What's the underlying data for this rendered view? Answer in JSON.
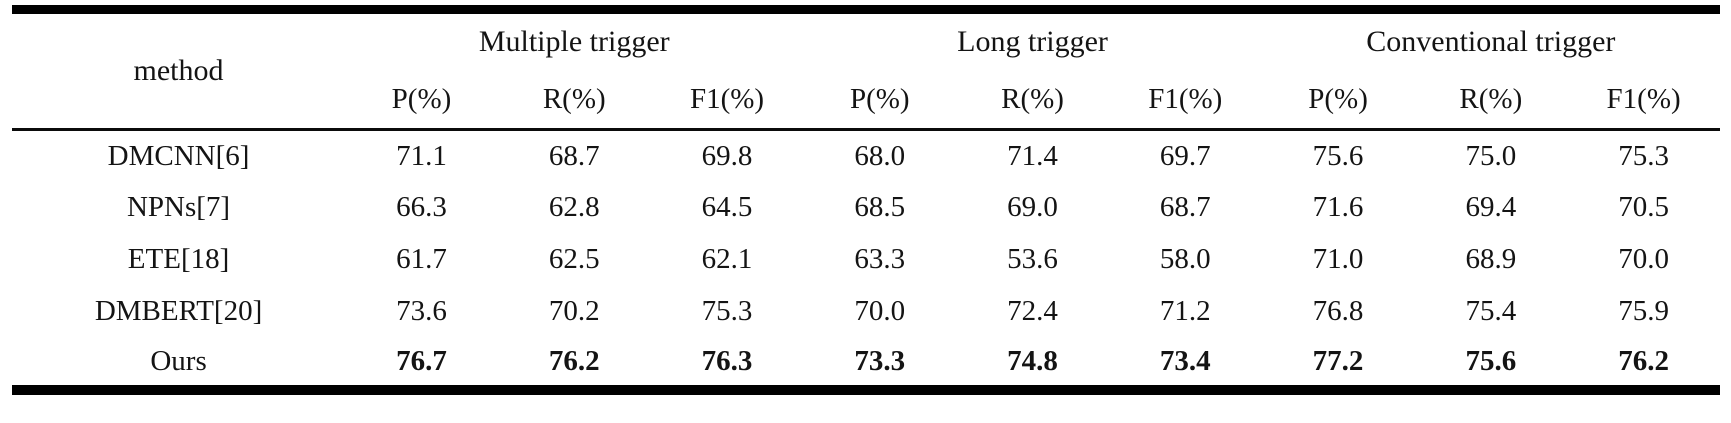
{
  "table": {
    "corner_header": "method",
    "groups": [
      {
        "label": "Multiple trigger"
      },
      {
        "label": "Long trigger"
      },
      {
        "label": "Conventional trigger"
      }
    ],
    "metric_headers": [
      "P(%)",
      "R(%)",
      "F1(%)"
    ],
    "rows": [
      {
        "method": "DMCNN[6]",
        "emphasis": "normal",
        "values": [
          "71.1",
          "68.7",
          "69.8",
          "68.0",
          "71.4",
          "69.7",
          "75.6",
          "75.0",
          "75.3"
        ]
      },
      {
        "method": "NPNs[7]",
        "emphasis": "normal",
        "values": [
          "66.3",
          "62.8",
          "64.5",
          "68.5",
          "69.0",
          "68.7",
          "71.6",
          "69.4",
          "70.5"
        ]
      },
      {
        "method": "ETE[18]",
        "emphasis": "normal",
        "values": [
          "61.7",
          "62.5",
          "62.1",
          "63.3",
          "53.6",
          "58.0",
          "71.0",
          "68.9",
          "70.0"
        ]
      },
      {
        "method": "DMBERT[20]",
        "emphasis": "normal",
        "values": [
          "73.6",
          "70.2",
          "75.3",
          "70.0",
          "72.4",
          "71.2",
          "76.8",
          "75.4",
          "75.9"
        ]
      },
      {
        "method": "Ours",
        "emphasis": "bold-values",
        "values": [
          "76.7",
          "76.2",
          "76.3",
          "73.3",
          "74.8",
          "73.4",
          "77.2",
          "75.6",
          "76.2"
        ]
      }
    ]
  },
  "colors": {
    "rule": "#000000",
    "text": "#141414",
    "background": "#ffffff"
  },
  "chart_data": {
    "type": "table",
    "column_groups": [
      "Multiple trigger",
      "Long trigger",
      "Conventional trigger"
    ],
    "columns": [
      "method",
      "Multiple trigger P(%)",
      "Multiple trigger R(%)",
      "Multiple trigger F1(%)",
      "Long trigger P(%)",
      "Long trigger R(%)",
      "Long trigger F1(%)",
      "Conventional trigger P(%)",
      "Conventional trigger R(%)",
      "Conventional trigger F1(%)"
    ],
    "rows": [
      [
        "DMCNN[6]",
        71.1,
        68.7,
        69.8,
        68.0,
        71.4,
        69.7,
        75.6,
        75.0,
        75.3
      ],
      [
        "NPNs[7]",
        66.3,
        62.8,
        64.5,
        68.5,
        69.0,
        68.7,
        71.6,
        69.4,
        70.5
      ],
      [
        "ETE[18]",
        61.7,
        62.5,
        62.1,
        63.3,
        53.6,
        58.0,
        71.0,
        68.9,
        70.0
      ],
      [
        "DMBERT[20]",
        73.6,
        70.2,
        75.3,
        70.0,
        72.4,
        71.2,
        76.8,
        75.4,
        75.9
      ],
      [
        "Ours",
        76.7,
        76.2,
        76.3,
        73.3,
        74.8,
        73.4,
        77.2,
        75.6,
        76.2
      ]
    ],
    "bold_row": "Ours"
  }
}
